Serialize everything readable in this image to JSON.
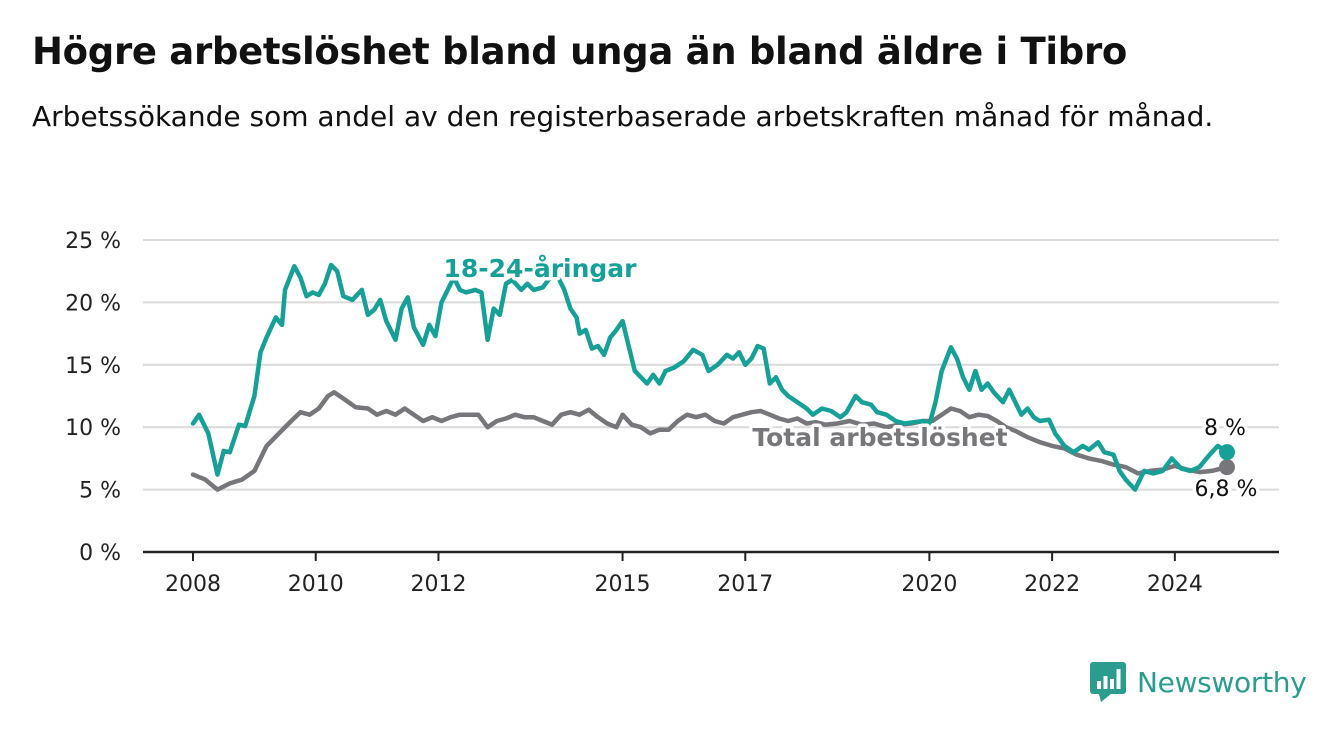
{
  "title": "Högre arbetslöshet bland unga än bland äldre i Tibro",
  "subtitle": "Arbetssökande som andel av den registerbaserade arbetskraften månad för månad.",
  "brand": {
    "name": "Newsworthy"
  },
  "colors": {
    "youth": "#17a097",
    "total": "#76767b",
    "grid": "#dadada",
    "axis": "#222222",
    "brand": "#2a9d8f"
  },
  "chart_data": {
    "type": "line",
    "title": "Högre arbetslöshet bland unga än bland äldre i Tibro",
    "subtitle": "Arbetssökande som andel av den registerbaserade arbetskraften månad för månad.",
    "xlabel": "",
    "ylabel": "",
    "y_ticks": [
      0,
      5,
      10,
      15,
      20,
      25
    ],
    "y_tick_labels": [
      "0 %",
      "5 %",
      "10 %",
      "15 %",
      "20 %",
      "25 %"
    ],
    "ylim": [
      0,
      25
    ],
    "xlim": [
      2008,
      2025.5
    ],
    "x_ticks": [
      2008,
      2010,
      2012,
      2015,
      2017,
      2020,
      2022,
      2024
    ],
    "x_tick_labels": [
      "2008",
      "2010",
      "2012",
      "2015",
      "2017",
      "2020",
      "2022",
      "2024"
    ],
    "grid": true,
    "series": [
      {
        "name": "18-24-åringar",
        "end_label": "8 %",
        "points": [
          [
            2008.0,
            10.3
          ],
          [
            2008.1,
            11.0
          ],
          [
            2008.25,
            9.5
          ],
          [
            2008.4,
            6.2
          ],
          [
            2008.5,
            8.1
          ],
          [
            2008.6,
            8.0
          ],
          [
            2008.75,
            10.2
          ],
          [
            2008.85,
            10.1
          ],
          [
            2009.0,
            12.5
          ],
          [
            2009.1,
            16.0
          ],
          [
            2009.2,
            17.2
          ],
          [
            2009.35,
            18.8
          ],
          [
            2009.45,
            18.2
          ],
          [
            2009.5,
            21.0
          ],
          [
            2009.65,
            22.9
          ],
          [
            2009.75,
            22.0
          ],
          [
            2009.85,
            20.5
          ],
          [
            2009.95,
            20.8
          ],
          [
            2010.05,
            20.6
          ],
          [
            2010.15,
            21.5
          ],
          [
            2010.25,
            23.0
          ],
          [
            2010.35,
            22.5
          ],
          [
            2010.45,
            20.5
          ],
          [
            2010.6,
            20.2
          ],
          [
            2010.75,
            21.0
          ],
          [
            2010.85,
            19.0
          ],
          [
            2010.95,
            19.4
          ],
          [
            2011.05,
            20.2
          ],
          [
            2011.15,
            18.5
          ],
          [
            2011.3,
            17.0
          ],
          [
            2011.4,
            19.5
          ],
          [
            2011.5,
            20.4
          ],
          [
            2011.6,
            18.0
          ],
          [
            2011.75,
            16.6
          ],
          [
            2011.85,
            18.2
          ],
          [
            2011.95,
            17.3
          ],
          [
            2012.05,
            20.0
          ],
          [
            2012.15,
            21.0
          ],
          [
            2012.25,
            22.0
          ],
          [
            2012.35,
            21.0
          ],
          [
            2012.45,
            20.8
          ],
          [
            2012.6,
            21.0
          ],
          [
            2012.7,
            20.8
          ],
          [
            2012.8,
            17.0
          ],
          [
            2012.9,
            19.5
          ],
          [
            2013.0,
            19.0
          ],
          [
            2013.1,
            21.5
          ],
          [
            2013.2,
            21.8
          ],
          [
            2013.35,
            21.0
          ],
          [
            2013.45,
            21.5
          ],
          [
            2013.55,
            21.0
          ],
          [
            2013.7,
            21.2
          ],
          [
            2013.85,
            22.2
          ],
          [
            2013.95,
            22.0
          ],
          [
            2014.05,
            21.0
          ],
          [
            2014.15,
            19.5
          ],
          [
            2014.25,
            18.8
          ],
          [
            2014.3,
            17.5
          ],
          [
            2014.4,
            17.8
          ],
          [
            2014.5,
            16.3
          ],
          [
            2014.6,
            16.5
          ],
          [
            2014.7,
            15.8
          ],
          [
            2014.8,
            17.2
          ],
          [
            2014.9,
            17.8
          ],
          [
            2015.0,
            18.5
          ],
          [
            2015.1,
            16.5
          ],
          [
            2015.2,
            14.5
          ],
          [
            2015.3,
            14.0
          ],
          [
            2015.4,
            13.5
          ],
          [
            2015.5,
            14.2
          ],
          [
            2015.6,
            13.5
          ],
          [
            2015.7,
            14.5
          ],
          [
            2015.85,
            14.8
          ],
          [
            2016.0,
            15.3
          ],
          [
            2016.15,
            16.2
          ],
          [
            2016.3,
            15.8
          ],
          [
            2016.4,
            14.5
          ],
          [
            2016.55,
            15.0
          ],
          [
            2016.7,
            15.8
          ],
          [
            2016.8,
            15.5
          ],
          [
            2016.9,
            16.0
          ],
          [
            2017.0,
            15.0
          ],
          [
            2017.1,
            15.5
          ],
          [
            2017.2,
            16.5
          ],
          [
            2017.3,
            16.3
          ],
          [
            2017.4,
            13.5
          ],
          [
            2017.5,
            14.0
          ],
          [
            2017.6,
            13.0
          ],
          [
            2017.7,
            12.5
          ],
          [
            2017.85,
            12.0
          ],
          [
            2018.0,
            11.5
          ],
          [
            2018.1,
            11.0
          ],
          [
            2018.25,
            11.5
          ],
          [
            2018.4,
            11.3
          ],
          [
            2018.55,
            10.8
          ],
          [
            2018.65,
            11.2
          ],
          [
            2018.8,
            12.5
          ],
          [
            2018.9,
            12.0
          ],
          [
            2019.05,
            11.8
          ],
          [
            2019.15,
            11.2
          ],
          [
            2019.3,
            11.0
          ],
          [
            2019.45,
            10.5
          ],
          [
            2019.6,
            10.3
          ],
          [
            2019.75,
            10.4
          ],
          [
            2019.9,
            10.5
          ],
          [
            2020.0,
            10.2
          ],
          [
            2020.1,
            12.0
          ],
          [
            2020.2,
            14.5
          ],
          [
            2020.35,
            16.4
          ],
          [
            2020.45,
            15.5
          ],
          [
            2020.55,
            14.0
          ],
          [
            2020.65,
            13.0
          ],
          [
            2020.75,
            14.5
          ],
          [
            2020.85,
            13.0
          ],
          [
            2020.95,
            13.5
          ],
          [
            2021.05,
            12.8
          ],
          [
            2021.2,
            12.0
          ],
          [
            2021.3,
            13.0
          ],
          [
            2021.4,
            12.0
          ],
          [
            2021.5,
            11.0
          ],
          [
            2021.6,
            11.5
          ],
          [
            2021.7,
            10.8
          ],
          [
            2021.8,
            10.5
          ],
          [
            2021.95,
            10.6
          ],
          [
            2022.05,
            9.5
          ],
          [
            2022.2,
            8.5
          ],
          [
            2022.35,
            8.0
          ],
          [
            2022.5,
            8.5
          ],
          [
            2022.6,
            8.2
          ],
          [
            2022.75,
            8.8
          ],
          [
            2022.85,
            8.0
          ],
          [
            2023.0,
            7.8
          ],
          [
            2023.1,
            6.5
          ],
          [
            2023.2,
            5.8
          ],
          [
            2023.35,
            5.0
          ],
          [
            2023.5,
            6.5
          ],
          [
            2023.65,
            6.3
          ],
          [
            2023.8,
            6.5
          ],
          [
            2023.95,
            7.5
          ],
          [
            2024.1,
            6.7
          ],
          [
            2024.25,
            6.5
          ],
          [
            2024.4,
            6.8
          ],
          [
            2024.55,
            7.7
          ],
          [
            2024.7,
            8.5
          ],
          [
            2024.85,
            8.0
          ]
        ]
      },
      {
        "name": "Total arbetslöshet",
        "end_label": "6,8 %",
        "points": [
          [
            2008.0,
            6.2
          ],
          [
            2008.2,
            5.8
          ],
          [
            2008.4,
            5.0
          ],
          [
            2008.6,
            5.5
          ],
          [
            2008.8,
            5.8
          ],
          [
            2009.0,
            6.5
          ],
          [
            2009.2,
            8.5
          ],
          [
            2009.4,
            9.5
          ],
          [
            2009.6,
            10.5
          ],
          [
            2009.75,
            11.2
          ],
          [
            2009.9,
            11.0
          ],
          [
            2010.05,
            11.5
          ],
          [
            2010.2,
            12.5
          ],
          [
            2010.3,
            12.8
          ],
          [
            2010.45,
            12.3
          ],
          [
            2010.65,
            11.6
          ],
          [
            2010.85,
            11.5
          ],
          [
            2011.0,
            11.0
          ],
          [
            2011.15,
            11.3
          ],
          [
            2011.3,
            11.0
          ],
          [
            2011.45,
            11.5
          ],
          [
            2011.6,
            11.0
          ],
          [
            2011.75,
            10.5
          ],
          [
            2011.9,
            10.8
          ],
          [
            2012.05,
            10.5
          ],
          [
            2012.2,
            10.8
          ],
          [
            2012.35,
            11.0
          ],
          [
            2012.5,
            11.0
          ],
          [
            2012.65,
            11.0
          ],
          [
            2012.8,
            10.0
          ],
          [
            2012.95,
            10.5
          ],
          [
            2013.1,
            10.7
          ],
          [
            2013.25,
            11.0
          ],
          [
            2013.4,
            10.8
          ],
          [
            2013.55,
            10.8
          ],
          [
            2013.7,
            10.5
          ],
          [
            2013.85,
            10.2
          ],
          [
            2014.0,
            11.0
          ],
          [
            2014.15,
            11.2
          ],
          [
            2014.3,
            11.0
          ],
          [
            2014.45,
            11.4
          ],
          [
            2014.6,
            10.8
          ],
          [
            2014.75,
            10.3
          ],
          [
            2014.9,
            10.0
          ],
          [
            2015.0,
            11.0
          ],
          [
            2015.15,
            10.2
          ],
          [
            2015.3,
            10.0
          ],
          [
            2015.45,
            9.5
          ],
          [
            2015.6,
            9.8
          ],
          [
            2015.75,
            9.8
          ],
          [
            2015.9,
            10.5
          ],
          [
            2016.05,
            11.0
          ],
          [
            2016.2,
            10.8
          ],
          [
            2016.35,
            11.0
          ],
          [
            2016.5,
            10.5
          ],
          [
            2016.65,
            10.3
          ],
          [
            2016.8,
            10.8
          ],
          [
            2016.95,
            11.0
          ],
          [
            2017.1,
            11.2
          ],
          [
            2017.25,
            11.3
          ],
          [
            2017.4,
            11.0
          ],
          [
            2017.55,
            10.7
          ],
          [
            2017.7,
            10.5
          ],
          [
            2017.85,
            10.7
          ],
          [
            2018.0,
            10.3
          ],
          [
            2018.15,
            10.4
          ],
          [
            2018.3,
            10.2
          ],
          [
            2018.5,
            10.3
          ],
          [
            2018.7,
            10.5
          ],
          [
            2018.9,
            10.2
          ],
          [
            2019.1,
            10.3
          ],
          [
            2019.3,
            10.0
          ],
          [
            2019.5,
            10.2
          ],
          [
            2019.7,
            10.3
          ],
          [
            2019.9,
            10.5
          ],
          [
            2020.05,
            10.5
          ],
          [
            2020.2,
            11.0
          ],
          [
            2020.35,
            11.5
          ],
          [
            2020.5,
            11.3
          ],
          [
            2020.65,
            10.8
          ],
          [
            2020.8,
            11.0
          ],
          [
            2020.95,
            10.9
          ],
          [
            2021.1,
            10.5
          ],
          [
            2021.25,
            10.0
          ],
          [
            2021.4,
            9.7
          ],
          [
            2021.6,
            9.2
          ],
          [
            2021.8,
            8.8
          ],
          [
            2022.0,
            8.5
          ],
          [
            2022.2,
            8.3
          ],
          [
            2022.4,
            7.8
          ],
          [
            2022.6,
            7.5
          ],
          [
            2022.8,
            7.3
          ],
          [
            2023.0,
            7.0
          ],
          [
            2023.2,
            6.8
          ],
          [
            2023.4,
            6.3
          ],
          [
            2023.6,
            6.5
          ],
          [
            2023.8,
            6.6
          ],
          [
            2024.0,
            6.9
          ],
          [
            2024.2,
            6.6
          ],
          [
            2024.4,
            6.4
          ],
          [
            2024.6,
            6.5
          ],
          [
            2024.85,
            6.8
          ]
        ]
      }
    ]
  }
}
